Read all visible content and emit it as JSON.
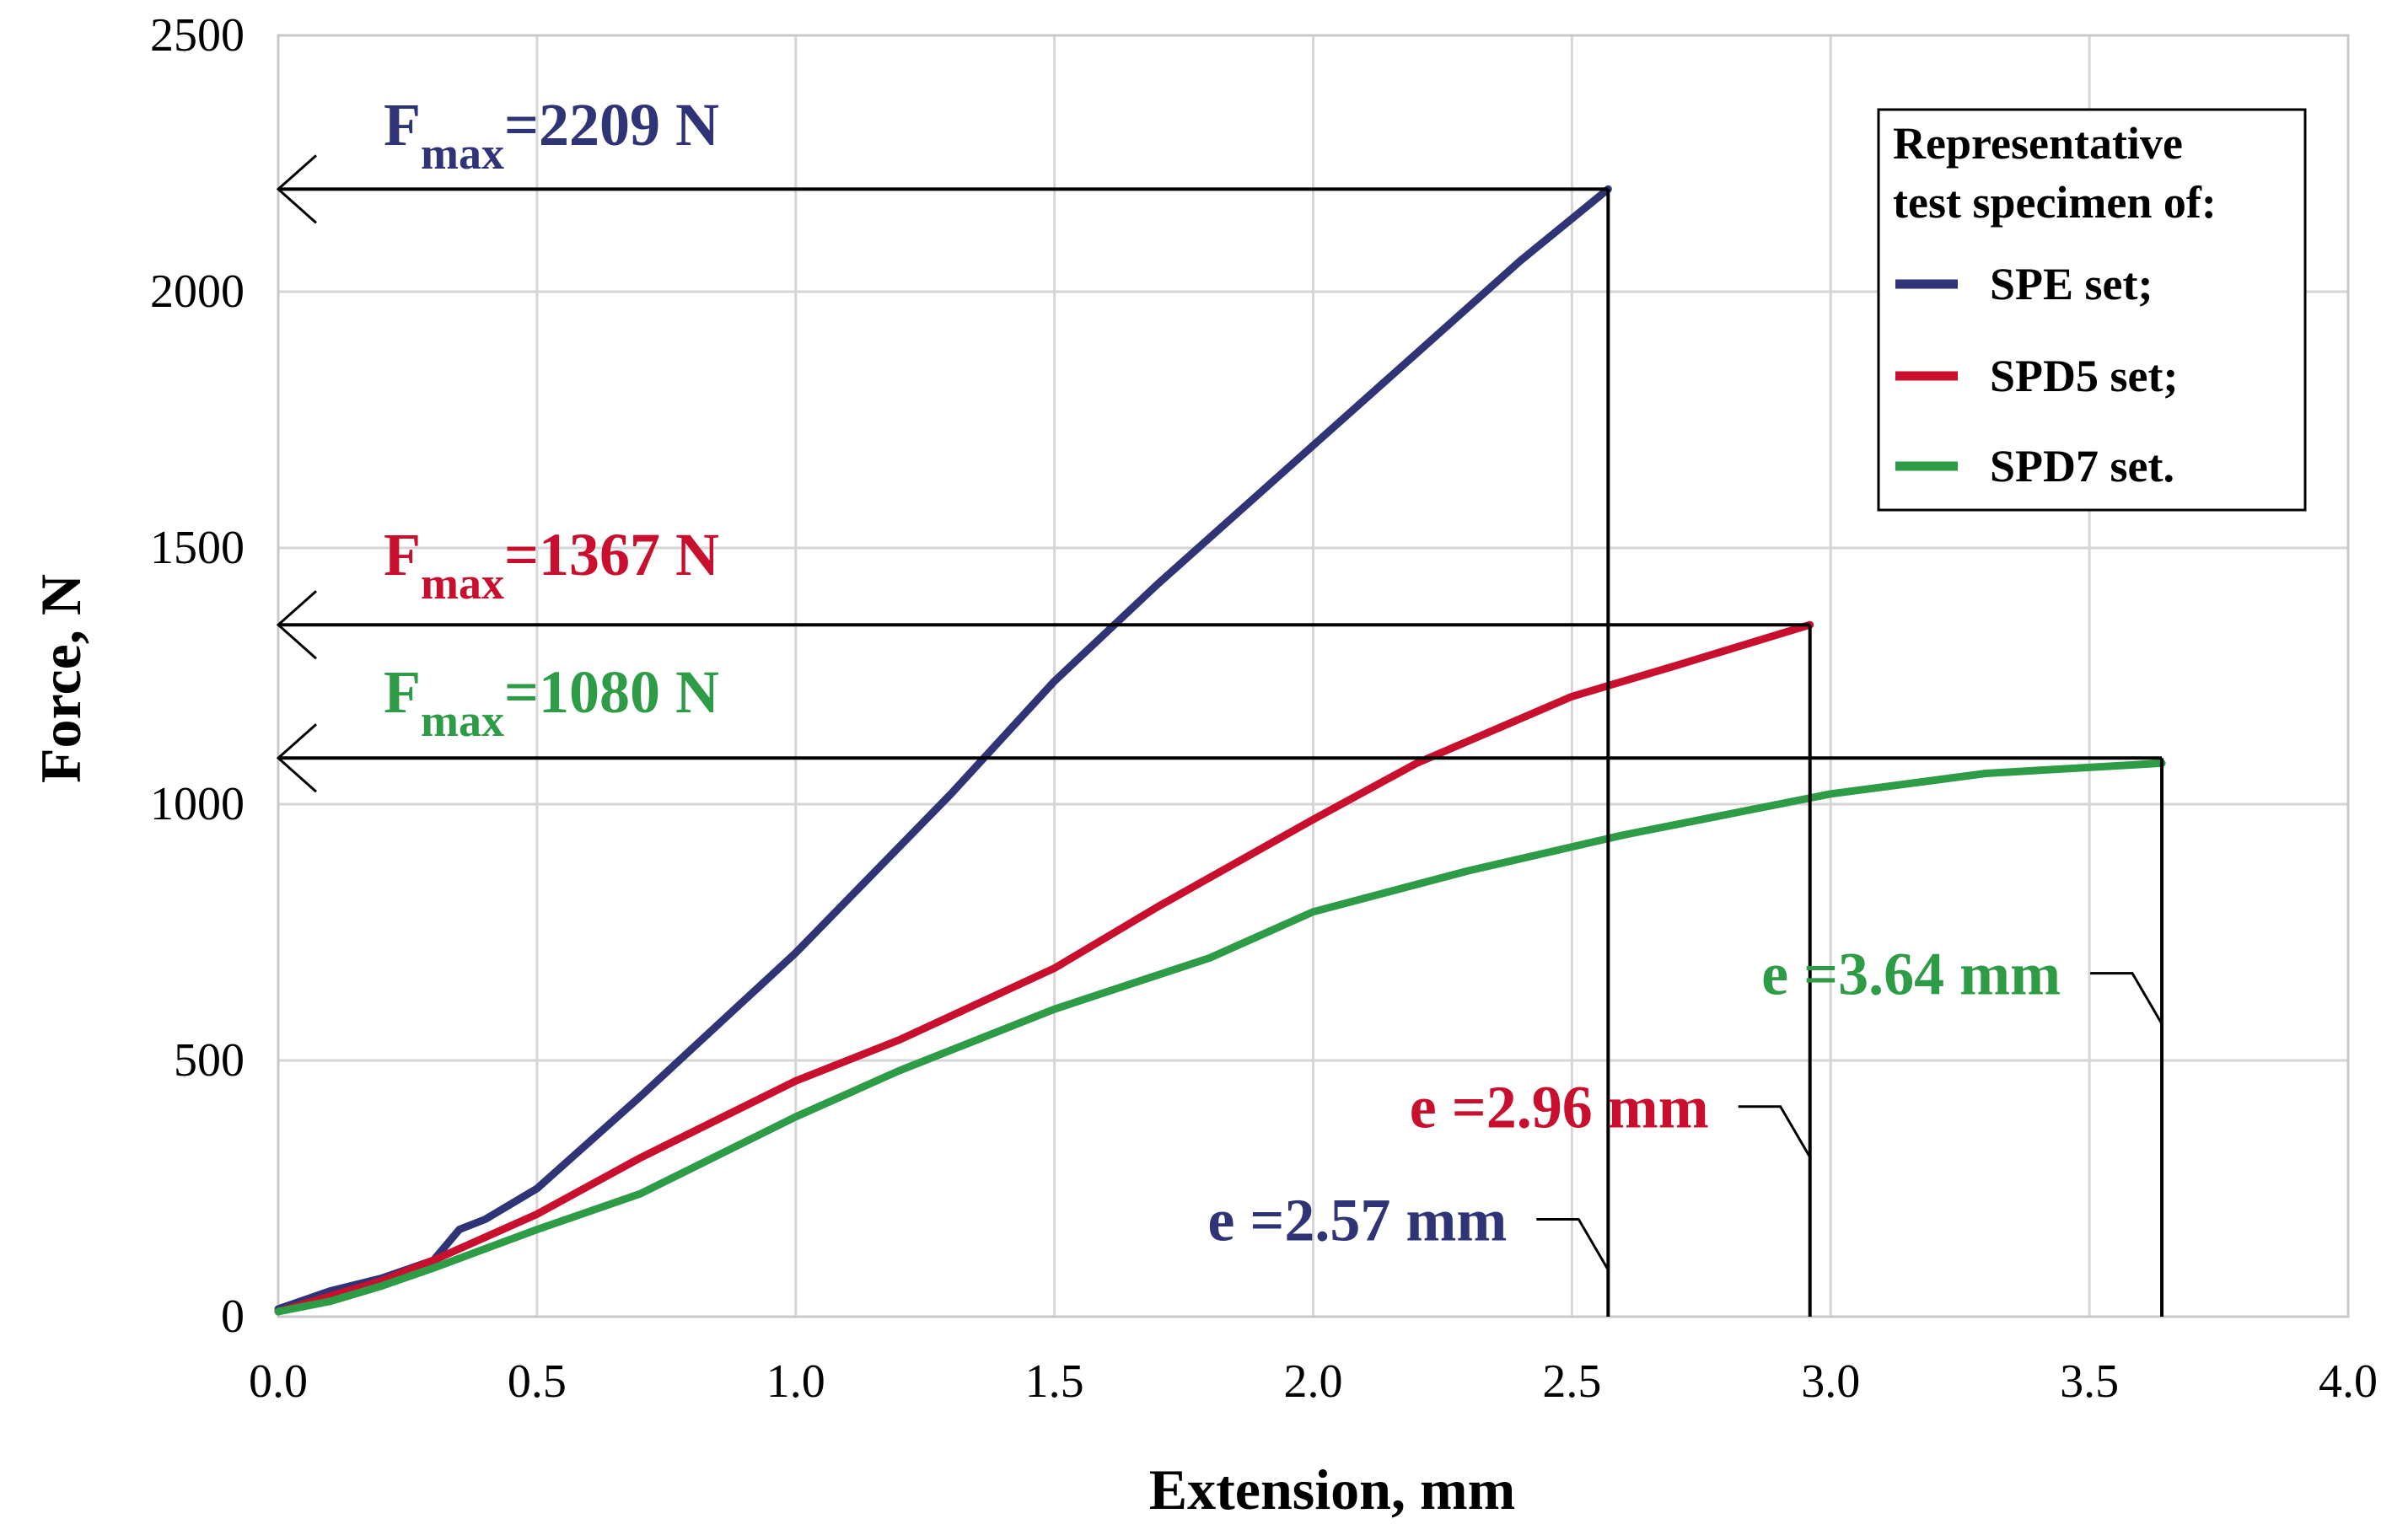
{
  "chart_data": {
    "type": "line",
    "xlabel": "Extension, mm",
    "ylabel": "Force, N",
    "xlim": [
      0,
      4
    ],
    "ylim": [
      0,
      2500
    ],
    "xticks": [
      "0.0",
      "0.5",
      "1.0",
      "1.5",
      "2.0",
      "2.5",
      "3.0",
      "3.5",
      "4.0"
    ],
    "yticks": [
      "0",
      "500",
      "1000",
      "1500",
      "2000",
      "2500"
    ],
    "grid": true,
    "legend": {
      "title_line1": "Representative",
      "title_line2": "test specimen of:",
      "placement": "top-right"
    },
    "series": [
      {
        "name": "SPE set;",
        "color": "#2e3475",
        "x": [
          0,
          0.1,
          0.2,
          0.3,
          0.35,
          0.4,
          0.5,
          0.7,
          1.0,
          1.3,
          1.5,
          1.7,
          2.0,
          2.2,
          2.4,
          2.57
        ],
        "y": [
          15,
          50,
          75,
          110,
          170,
          190,
          250,
          430,
          710,
          1020,
          1240,
          1430,
          1700,
          1880,
          2060,
          2200
        ]
      },
      {
        "name": "SPD5 set;",
        "color": "#c8102e",
        "x": [
          0,
          0.1,
          0.2,
          0.3,
          0.5,
          0.7,
          1.0,
          1.2,
          1.5,
          1.7,
          2.0,
          2.2,
          2.5,
          2.7,
          2.96
        ],
        "y": [
          10,
          40,
          70,
          110,
          200,
          310,
          460,
          540,
          680,
          800,
          970,
          1080,
          1210,
          1270,
          1350
        ]
      },
      {
        "name": "SPD7 set.",
        "color": "#2e9b46",
        "x": [
          0,
          0.1,
          0.2,
          0.3,
          0.5,
          0.7,
          1.0,
          1.2,
          1.5,
          1.8,
          2.0,
          2.3,
          2.6,
          3.0,
          3.3,
          3.64
        ],
        "y": [
          10,
          30,
          60,
          95,
          170,
          240,
          390,
          480,
          600,
          700,
          790,
          870,
          940,
          1020,
          1060,
          1080
        ]
      }
    ],
    "annotations": {
      "fmax": [
        {
          "prefix": "F",
          "sub": "max",
          "value": "=2209 N",
          "y": 2200,
          "x_end": 2.57,
          "color": "#2e3475"
        },
        {
          "prefix": "F",
          "sub": "max",
          "value": "=1367 N",
          "y": 1350,
          "x_end": 2.96,
          "color": "#c8102e"
        },
        {
          "prefix": "F",
          "sub": "max",
          "value": "=1080 N",
          "y": 1090,
          "x_end": 3.64,
          "color": "#2e9b46"
        }
      ],
      "extension": [
        {
          "text": "e =2.57 mm",
          "x": 2.57,
          "label_y": 190,
          "color": "#2e3475"
        },
        {
          "text": "e =2.96 mm",
          "x": 2.96,
          "label_y": 410,
          "color": "#c8102e"
        },
        {
          "text": "e =3.64 mm",
          "x": 3.64,
          "label_y": 670,
          "color": "#2e9b46"
        }
      ]
    }
  }
}
